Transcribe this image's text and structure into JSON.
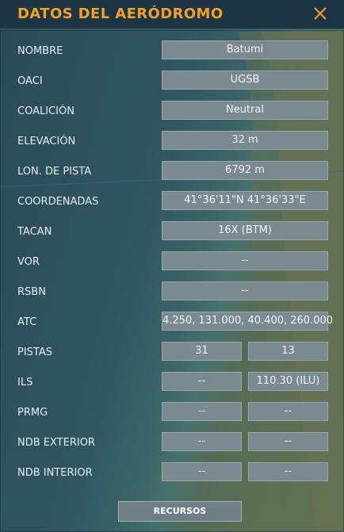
{
  "window": {
    "title": "DATOS DEL AERÓDROMO",
    "close_icon": "close-icon"
  },
  "rows": {
    "nombre": {
      "label": "NOMBRE",
      "value": "Batumi"
    },
    "oaci": {
      "label": "OACI",
      "value": "UGSB"
    },
    "coalicion": {
      "label": "COALICIÓN",
      "value": "Neutral"
    },
    "elevacion": {
      "label": "ELEVACIÓN",
      "value": "32 m"
    },
    "lon_pista": {
      "label": "LON. DE PISTA",
      "value": "6792 m"
    },
    "coordenadas": {
      "label": "COORDENADAS",
      "value": "41°36'11\"N 41°36'33\"E"
    },
    "tacan": {
      "label": "TACAN",
      "value": "16X (BTM)"
    },
    "vor": {
      "label": "VOR",
      "value": "--"
    },
    "rsbn": {
      "label": "RSBN",
      "value": "--"
    },
    "atc": {
      "label": "ATC",
      "value": "4.250, 131.000, 40.400, 260.000"
    },
    "pistas": {
      "label": "PISTAS",
      "value_a": "31",
      "value_b": "13"
    },
    "ils": {
      "label": "ILS",
      "value_a": "--",
      "value_b": "110.30 (ILU)"
    },
    "prmg": {
      "label": "PRMG",
      "value_a": "--",
      "value_b": "--"
    },
    "ndb_exterior": {
      "label": "NDB EXTERIOR",
      "value_a": "--",
      "value_b": "--"
    },
    "ndb_interior": {
      "label": "NDB INTERIOR",
      "value_a": "--",
      "value_b": "--"
    }
  },
  "footer": {
    "resources_button": "RECURSOS"
  }
}
